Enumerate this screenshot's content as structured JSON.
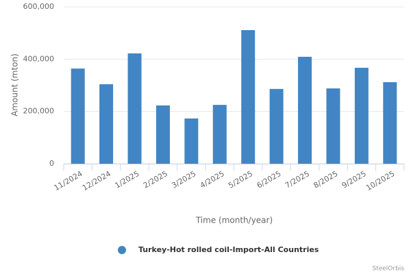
{
  "chart_data": {
    "type": "bar",
    "x_label": "Time (month/year)",
    "y_label": "Amount (mton)",
    "categories": [
      "11/2024",
      "12/2024",
      "1/2025",
      "2/2025",
      "3/2025",
      "4/2025",
      "5/2025",
      "6/2025",
      "7/2025",
      "8/2025",
      "9/2025",
      "10/2025"
    ],
    "series": [
      {
        "name": "Turkey-Hot rolled coil-Import-All Countries",
        "color": "#4285c4",
        "values": [
          364000,
          304000,
          422000,
          223000,
          173000,
          225000,
          511000,
          286000,
          409000,
          288000,
          367000,
          312000
        ]
      }
    ],
    "ylim": [
      0,
      600000
    ],
    "yticks": [
      0,
      {
        "value": 200000,
        "label": "200,000"
      },
      {
        "value": 400000,
        "label": "400,000"
      },
      {
        "value": 600000,
        "label": "600,000"
      }
    ],
    "grid": true,
    "legend": "bottom",
    "credit": "SteelOrbis"
  }
}
